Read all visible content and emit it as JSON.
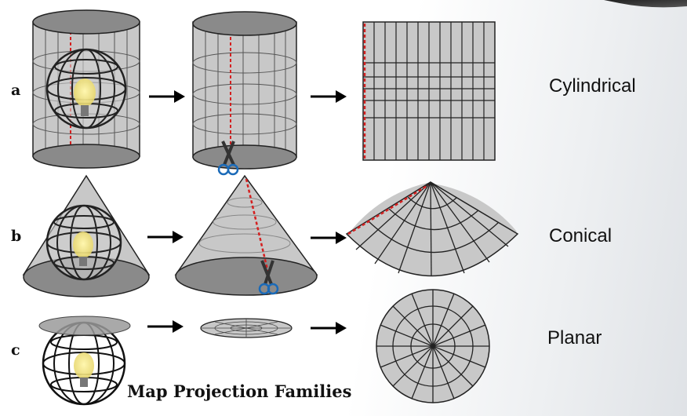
{
  "rows": [
    {
      "letter": "a",
      "family": "Cylindrical"
    },
    {
      "letter": "b",
      "family": "Conical"
    },
    {
      "letter": "c",
      "family": "Planar"
    }
  ],
  "title": "Map Projection Families",
  "icons": [
    "globe-icon",
    "light-bulb-icon",
    "scissors-icon",
    "arrow-right-icon"
  ],
  "colors": {
    "surface_fill": "#c8c8c8",
    "surface_dark": "#8a8a8a",
    "cut_line": "#d42020",
    "line": "#222222"
  }
}
